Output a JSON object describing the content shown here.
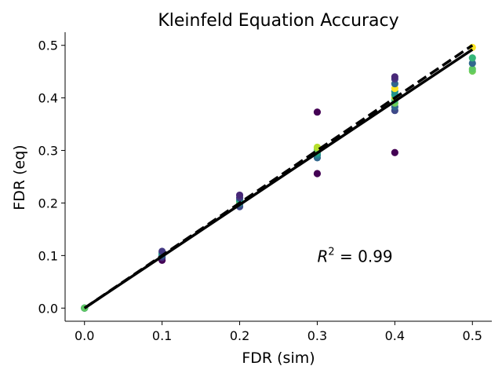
{
  "chart_data": {
    "type": "scatter",
    "title": "Kleinfeld Equation Accuracy",
    "xlabel": "FDR (sim)",
    "ylabel": "FDR (eq)",
    "xlim": [
      -0.025,
      0.525
    ],
    "ylim": [
      -0.025,
      0.525
    ],
    "xticks": [
      0.0,
      0.1,
      0.2,
      0.3,
      0.4,
      0.5
    ],
    "yticks": [
      0.0,
      0.1,
      0.2,
      0.3,
      0.4,
      0.5
    ],
    "xtick_labels": [
      "0.0",
      "0.1",
      "0.2",
      "0.3",
      "0.4",
      "0.5"
    ],
    "ytick_labels": [
      "0.0",
      "0.1",
      "0.2",
      "0.3",
      "0.4",
      "0.5"
    ],
    "annotation": {
      "prefix": "R",
      "sup": "2",
      "text": " = 0.99",
      "x": 0.3,
      "y": 0.1
    },
    "identity_line": {
      "style": "dashed",
      "color": "#000000",
      "x": [
        0.0,
        0.5
      ],
      "y": [
        0.0,
        0.5
      ]
    },
    "fit_line": {
      "style": "solid",
      "color": "#000000",
      "x": [
        0.0,
        0.5
      ],
      "y": [
        0.0,
        0.492
      ]
    },
    "points": [
      {
        "x": 0.0,
        "y": 0.0,
        "c": "#440154"
      },
      {
        "x": 0.0,
        "y": 0.0,
        "c": "#3b528b"
      },
      {
        "x": 0.0,
        "y": 0.0,
        "c": "#21918c"
      },
      {
        "x": 0.0,
        "y": 0.0,
        "c": "#5ec962"
      },
      {
        "x": 0.1,
        "y": 0.091,
        "c": "#440154"
      },
      {
        "x": 0.1,
        "y": 0.096,
        "c": "#482878"
      },
      {
        "x": 0.1,
        "y": 0.099,
        "c": "#3e4989"
      },
      {
        "x": 0.1,
        "y": 0.101,
        "c": "#31688e"
      },
      {
        "x": 0.1,
        "y": 0.103,
        "c": "#26828e"
      },
      {
        "x": 0.1,
        "y": 0.105,
        "c": "#1f9e89"
      },
      {
        "x": 0.1,
        "y": 0.108,
        "c": "#443983"
      },
      {
        "x": 0.2,
        "y": 0.193,
        "c": "#3e4989"
      },
      {
        "x": 0.2,
        "y": 0.198,
        "c": "#31688e"
      },
      {
        "x": 0.2,
        "y": 0.201,
        "c": "#35b779"
      },
      {
        "x": 0.2,
        "y": 0.203,
        "c": "#6ece58"
      },
      {
        "x": 0.2,
        "y": 0.206,
        "c": "#1f9e89"
      },
      {
        "x": 0.2,
        "y": 0.21,
        "c": "#443983"
      },
      {
        "x": 0.2,
        "y": 0.215,
        "c": "#482878"
      },
      {
        "x": 0.3,
        "y": 0.256,
        "c": "#440154"
      },
      {
        "x": 0.3,
        "y": 0.286,
        "c": "#31688e"
      },
      {
        "x": 0.3,
        "y": 0.291,
        "c": "#26828e"
      },
      {
        "x": 0.3,
        "y": 0.295,
        "c": "#1f9e89"
      },
      {
        "x": 0.3,
        "y": 0.299,
        "c": "#35b779"
      },
      {
        "x": 0.3,
        "y": 0.302,
        "c": "#6ece58"
      },
      {
        "x": 0.3,
        "y": 0.306,
        "c": "#b5de2b"
      },
      {
        "x": 0.3,
        "y": 0.373,
        "c": "#440154"
      },
      {
        "x": 0.4,
        "y": 0.296,
        "c": "#440154"
      },
      {
        "x": 0.4,
        "y": 0.376,
        "c": "#3e4989"
      },
      {
        "x": 0.4,
        "y": 0.383,
        "c": "#31688e"
      },
      {
        "x": 0.4,
        "y": 0.39,
        "c": "#6ece58"
      },
      {
        "x": 0.4,
        "y": 0.396,
        "c": "#35b779"
      },
      {
        "x": 0.4,
        "y": 0.401,
        "c": "#b5de2b"
      },
      {
        "x": 0.4,
        "y": 0.406,
        "c": "#1f9e89"
      },
      {
        "x": 0.4,
        "y": 0.412,
        "c": "#21918c"
      },
      {
        "x": 0.4,
        "y": 0.418,
        "c": "#fde725"
      },
      {
        "x": 0.4,
        "y": 0.427,
        "c": "#31688e"
      },
      {
        "x": 0.4,
        "y": 0.436,
        "c": "#443983"
      },
      {
        "x": 0.4,
        "y": 0.44,
        "c": "#482878"
      },
      {
        "x": 0.5,
        "y": 0.451,
        "c": "#6ece58"
      },
      {
        "x": 0.5,
        "y": 0.455,
        "c": "#5ec962"
      },
      {
        "x": 0.5,
        "y": 0.466,
        "c": "#31688e"
      },
      {
        "x": 0.5,
        "y": 0.476,
        "c": "#35b779"
      },
      {
        "x": 0.5,
        "y": 0.496,
        "c": "#fde725"
      }
    ]
  }
}
